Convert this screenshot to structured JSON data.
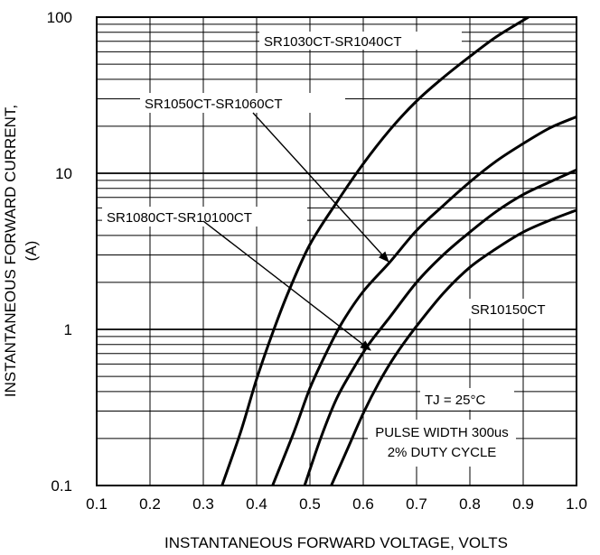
{
  "chart_data": {
    "type": "line",
    "title": "",
    "xlabel": "INSTANTANEOUS FORWARD VOLTAGE, VOLTS",
    "ylabel_line1": "INSTANTANEOUS FORWARD CURRENT,",
    "ylabel_line2": "(A)",
    "xlim": [
      0.1,
      1.0
    ],
    "ylim": [
      0.1,
      100
    ],
    "yscale": "log",
    "grid": true,
    "x_ticks": [
      "0.1",
      "0.2",
      "0.3",
      "0.4",
      "0.5",
      "0.6",
      "0.7",
      "0.8",
      "0.9",
      "1.0"
    ],
    "y_ticks": [
      "0.1",
      "1",
      "10",
      "100"
    ],
    "series": [
      {
        "name": "SR1030CT-SR1040CT",
        "x": [
          0.335,
          0.37,
          0.4,
          0.43,
          0.46,
          0.5,
          0.55,
          0.6,
          0.65,
          0.7,
          0.75,
          0.8,
          0.85,
          0.91
        ],
        "y": [
          0.1,
          0.22,
          0.48,
          0.95,
          1.75,
          3.5,
          6.5,
          11.5,
          19,
          29,
          41,
          56,
          75,
          100
        ]
      },
      {
        "name": "SR1050CT-SR1060CT",
        "x": [
          0.43,
          0.47,
          0.5,
          0.53,
          0.56,
          0.6,
          0.65,
          0.7,
          0.75,
          0.8,
          0.85,
          0.9,
          0.95,
          1.0
        ],
        "y": [
          0.1,
          0.22,
          0.42,
          0.7,
          1.1,
          1.75,
          2.7,
          4.3,
          6.2,
          8.8,
          12,
          15.5,
          19.5,
          23
        ]
      },
      {
        "name": "SR1080CT-SR10100CT",
        "x": [
          0.49,
          0.52,
          0.55,
          0.58,
          0.61,
          0.65,
          0.7,
          0.75,
          0.8,
          0.85,
          0.9,
          0.95,
          1.0
        ],
        "y": [
          0.1,
          0.2,
          0.36,
          0.55,
          0.8,
          1.2,
          2.0,
          3.0,
          4.2,
          5.7,
          7.3,
          8.8,
          10.5
        ]
      },
      {
        "name": "SR10150CT",
        "x": [
          0.54,
          0.57,
          0.6,
          0.63,
          0.66,
          0.7,
          0.75,
          0.8,
          0.85,
          0.9,
          0.95,
          1.0
        ],
        "y": [
          0.1,
          0.17,
          0.29,
          0.46,
          0.68,
          1.05,
          1.7,
          2.5,
          3.3,
          4.2,
          5.0,
          5.8
        ]
      }
    ],
    "annotations": {
      "label_a": "SR1030CT-SR1040CT",
      "label_b": "SR1050CT-SR1060CT",
      "label_c": "SR1080CT-SR10100CT",
      "label_d": "SR10150CT",
      "tj": "TJ = 25°C",
      "pulse_line1": "PULSE WIDTH 300us",
      "pulse_line2": "2% DUTY CYCLE"
    },
    "colors": {
      "line": "#000000",
      "grid": "#000000",
      "background": "#ffffff"
    }
  }
}
